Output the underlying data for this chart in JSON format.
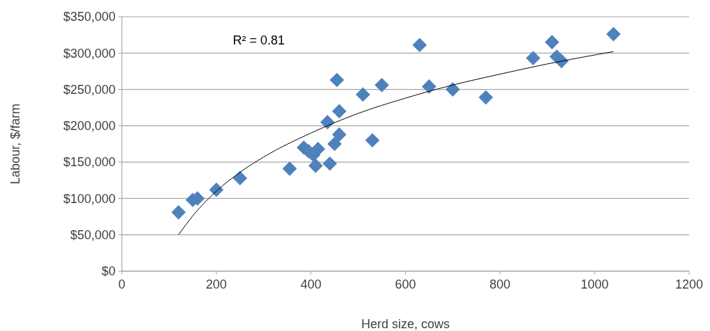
{
  "chart_data": {
    "type": "scatter",
    "xlabel": "Herd size, cows",
    "ylabel": "Labour, $/farm",
    "annotations": [
      "R² = 0.81"
    ],
    "xlim": [
      0,
      1200
    ],
    "xticks": [
      0,
      200,
      400,
      600,
      800,
      1000,
      1200
    ],
    "ylim": [
      0,
      350000
    ],
    "yticks": [
      {
        "value": 0,
        "label": "$0"
      },
      {
        "value": 50000,
        "label": "$50,000"
      },
      {
        "value": 100000,
        "label": "$100,000"
      },
      {
        "value": 150000,
        "label": "$150,000"
      },
      {
        "value": 200000,
        "label": "$200,000"
      },
      {
        "value": 250000,
        "label": "$250,000"
      },
      {
        "value": 300000,
        "label": "$300,000"
      },
      {
        "value": 350000,
        "label": "$350,000"
      }
    ],
    "grid": "y",
    "marker": "diamond",
    "series": [
      {
        "type": "scatter",
        "color": "#4f81bd",
        "x": [
          120,
          150,
          160,
          200,
          250,
          355,
          385,
          395,
          405,
          415,
          410,
          440,
          450,
          460,
          435,
          460,
          455,
          510,
          530,
          550,
          630,
          650,
          700,
          770,
          870,
          910,
          920,
          930,
          1040
        ],
        "values": [
          81000,
          98000,
          100000,
          112000,
          128000,
          141000,
          170000,
          165000,
          160000,
          168000,
          145000,
          148000,
          175000,
          188000,
          205000,
          220000,
          263000,
          243000,
          180000,
          256000,
          311000,
          254000,
          250000,
          239000,
          293000,
          315000,
          295000,
          289000,
          326000
        ]
      },
      {
        "type": "line",
        "color": "#000000",
        "line_style": "solid",
        "marker": "none",
        "x": [
          120,
          150,
          200,
          250,
          300,
          400,
          500,
          600,
          700,
          800,
          900,
          1040
        ],
        "values": [
          50000,
          76000,
          110000,
          136000,
          157000,
          190000,
          217000,
          238000,
          256000,
          271000,
          285000,
          302000
        ]
      }
    ]
  }
}
